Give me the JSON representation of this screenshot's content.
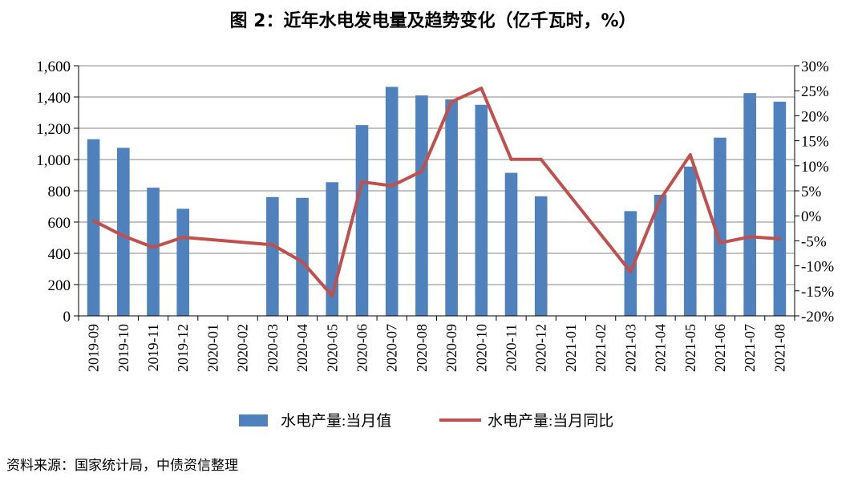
{
  "title": "图 2：近年水电发电量及趋势变化（亿千瓦时，%）",
  "source": "资料来源：国家统计局，中债资信整理",
  "colors": {
    "bar": "#4f81bd",
    "line": "#c0504d",
    "grid": "#868686"
  },
  "chart_data": {
    "type": "bar+line",
    "title": "图 2：近年水电发电量及趋势变化（亿千瓦时，%）",
    "categories": [
      "2019-09",
      "2019-10",
      "2019-11",
      "2019-12",
      "2020-01",
      "2020-02",
      "2020-03",
      "2020-04",
      "2020-05",
      "2020-06",
      "2020-07",
      "2020-08",
      "2020-09",
      "2020-10",
      "2020-11",
      "2020-12",
      "2021-01",
      "2021-02",
      "2021-03",
      "2021-04",
      "2021-05",
      "2021-06",
      "2021-07",
      "2021-08"
    ],
    "left_axis": {
      "min": 0,
      "max": 1600,
      "ticks": [
        "0",
        "200",
        "400",
        "600",
        "800",
        "1,000",
        "1,200",
        "1,400",
        "1,600"
      ],
      "tick_values": [
        0,
        200,
        400,
        600,
        800,
        1000,
        1200,
        1400,
        1600
      ]
    },
    "right_axis": {
      "min": -20,
      "max": 30,
      "ticks": [
        "-20%",
        "-15%",
        "-10%",
        "-5%",
        "0%",
        "5%",
        "10%",
        "15%",
        "20%",
        "25%",
        "30%"
      ],
      "tick_values": [
        -20,
        -15,
        -10,
        -5,
        0,
        5,
        10,
        15,
        20,
        25,
        30
      ]
    },
    "grid": true,
    "legend_position": "bottom",
    "series": [
      {
        "name": "水电产量:当月值",
        "kind": "bar",
        "axis": "left",
        "values": [
          1130,
          1075,
          820,
          685,
          null,
          null,
          760,
          755,
          855,
          1220,
          1465,
          1410,
          1385,
          1350,
          915,
          765,
          null,
          null,
          670,
          775,
          955,
          1140,
          1425,
          1370
        ]
      },
      {
        "name": "水电产量:当月同比",
        "kind": "line",
        "axis": "right",
        "values": [
          -1.0,
          -4.0,
          -6.3,
          -4.3,
          null,
          null,
          -5.8,
          -9.2,
          -16.0,
          6.8,
          6.0,
          8.9,
          22.8,
          25.5,
          11.3,
          11.3,
          null,
          null,
          -11.2,
          3.3,
          12.2,
          -5.4,
          -4.2,
          -4.6
        ]
      }
    ]
  }
}
